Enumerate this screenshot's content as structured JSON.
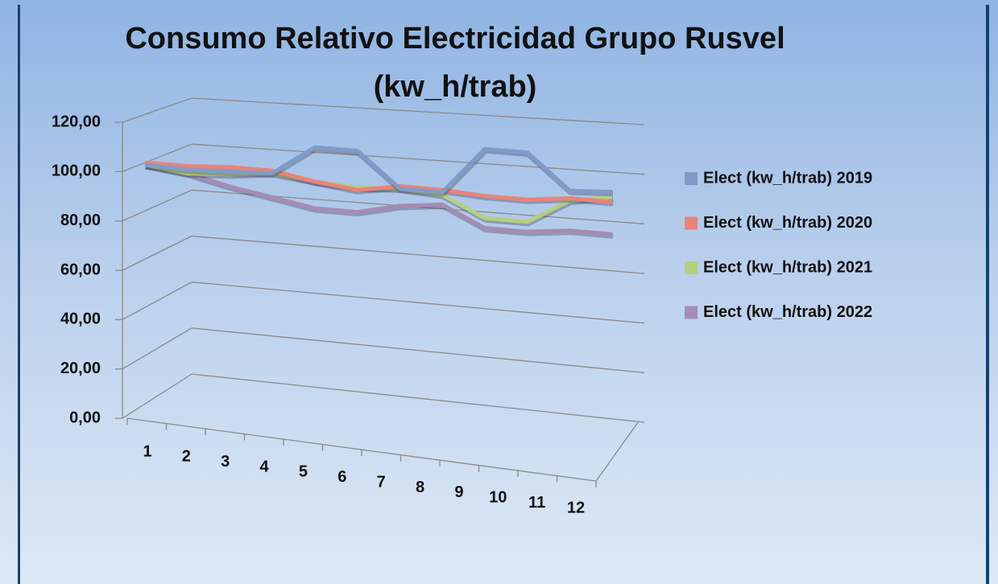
{
  "chart_data": {
    "type": "line3d",
    "title": "Consumo Relativo Electricidad Grupo Rusvel (kw_h/trab)",
    "categories": [
      "1",
      "2",
      "3",
      "4",
      "5",
      "6",
      "7",
      "8",
      "9",
      "10",
      "11",
      "12"
    ],
    "ylim": [
      0,
      120
    ],
    "yticks": [
      {
        "value": 0,
        "label": "0,00"
      },
      {
        "value": 20,
        "label": "20,00"
      },
      {
        "value": 40,
        "label": "40,00"
      },
      {
        "value": 60,
        "label": "60,00"
      },
      {
        "value": 80,
        "label": "80,00"
      },
      {
        "value": 100,
        "label": "100,00"
      },
      {
        "value": 120,
        "label": "120,00"
      }
    ],
    "grid": true,
    "legend": "right",
    "series": [
      {
        "name": "Elect (kw_h/trab) 2019",
        "color": "#7f9cc8",
        "values": [
          100,
          98.5,
          98,
          98,
          109,
          108,
          93,
          92,
          110,
          109,
          94,
          94
        ]
      },
      {
        "name": "Elect (kw_h/trab) 2020",
        "color": "#e8847a",
        "values": [
          101,
          100,
          100,
          99,
          95,
          92,
          94,
          93,
          91,
          90,
          91,
          90
        ]
      },
      {
        "name": "Elect (kw_h/trab) 2021",
        "color": "#b5cf7f",
        "values": [
          100,
          97,
          97,
          98,
          95,
          93,
          93,
          91,
          82,
          81,
          90,
          92
        ]
      },
      {
        "name": "Elect (kw_h/trab) 2022",
        "color": "#a58cb4",
        "values": [
          100,
          97,
          92,
          88,
          84,
          83,
          86,
          87,
          78,
          77,
          78,
          77
        ]
      }
    ]
  }
}
